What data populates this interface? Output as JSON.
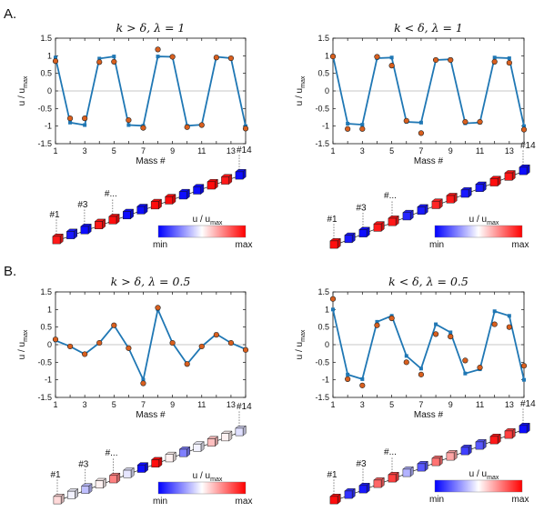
{
  "panels": [
    {
      "label": "A."
    },
    {
      "label": "B."
    }
  ],
  "chart_data": [
    {
      "type": "line",
      "title": "k > δ, λ = 1",
      "xlabel": "Mass #",
      "ylabel": "u / u",
      "ylabel_sub": "max",
      "xlim": [
        1,
        14
      ],
      "ylim": [
        -1.5,
        1.5
      ],
      "x_ticks": [
        1,
        3,
        5,
        7,
        9,
        11,
        13
      ],
      "y_ticks": [
        -1.5,
        -1,
        -0.5,
        0,
        0.5,
        1,
        1.5
      ],
      "x_tick_labels": [
        "1",
        "3",
        "5",
        "7",
        "9",
        "11",
        "13"
      ],
      "y_tick_labels": [
        "-1.5",
        "-1",
        "-0.5",
        "0",
        "0.5",
        "1",
        "1.5"
      ],
      "series": [
        {
          "x": [
            1,
            2,
            3,
            4,
            5,
            6,
            7,
            8,
            9,
            10,
            11,
            12,
            13,
            14
          ],
          "values": [
            0.95,
            -0.9,
            -0.97,
            0.92,
            0.98,
            -0.97,
            -0.99,
            0.98,
            0.97,
            -0.99,
            -0.96,
            0.97,
            0.93,
            -1.0
          ]
        },
        {
          "x": [
            1,
            2,
            3,
            4,
            5,
            6,
            7,
            8,
            9,
            10,
            11,
            12,
            13,
            14
          ],
          "values": [
            0.85,
            -0.78,
            -0.78,
            0.82,
            0.83,
            -0.83,
            -1.05,
            1.18,
            0.97,
            -1.03,
            -0.97,
            0.95,
            0.93,
            -1.07
          ]
        }
      ]
    },
    {
      "type": "line",
      "title": "k < δ, λ = 1",
      "xlabel": "Mass #",
      "ylabel": "u / u",
      "ylabel_sub": "max",
      "xlim": [
        1,
        14
      ],
      "ylim": [
        -1.5,
        1.5
      ],
      "x_ticks": [
        1,
        3,
        5,
        7,
        9,
        11,
        13
      ],
      "y_ticks": [
        -1.5,
        -1,
        -0.5,
        0,
        0.5,
        1,
        1.5
      ],
      "x_tick_labels": [
        "1",
        "3",
        "5",
        "7",
        "9",
        "11",
        "13"
      ],
      "y_tick_labels": [
        "-1.5",
        "-1",
        "-0.5",
        "0",
        "0.5",
        "1",
        "1.5"
      ],
      "series": [
        {
          "x": [
            1,
            2,
            3,
            4,
            5,
            6,
            7,
            8,
            9,
            10,
            11,
            12,
            13,
            14
          ],
          "values": [
            1.0,
            -0.93,
            -0.96,
            0.93,
            0.95,
            -0.88,
            -0.9,
            0.88,
            0.9,
            -0.92,
            -0.9,
            0.95,
            0.93,
            -1.0
          ]
        },
        {
          "x": [
            1,
            2,
            3,
            4,
            5,
            6,
            7,
            8,
            9,
            10,
            11,
            12,
            13,
            14
          ],
          "values": [
            0.98,
            -1.08,
            -1.08,
            0.97,
            0.72,
            -0.85,
            -1.2,
            0.88,
            0.88,
            -0.88,
            -0.88,
            0.83,
            0.8,
            -1.1
          ]
        }
      ]
    },
    {
      "type": "line",
      "title": "k > δ, λ = 0.5",
      "xlabel": "Mass #",
      "ylabel": "u / u",
      "ylabel_sub": "max",
      "xlim": [
        1,
        14
      ],
      "ylim": [
        -1.5,
        1.5
      ],
      "x_ticks": [
        1,
        3,
        5,
        7,
        9,
        11,
        13
      ],
      "y_ticks": [
        -1.5,
        -1,
        -0.5,
        0,
        0.5,
        1,
        1.5
      ],
      "x_tick_labels": [
        "1",
        "3",
        "5",
        "7",
        "9",
        "11",
        "13"
      ],
      "y_tick_labels": [
        "-1.5",
        "-1",
        "-0.5",
        "0",
        "0.5",
        "1",
        "1.5"
      ],
      "series": [
        {
          "x": [
            1,
            2,
            3,
            4,
            5,
            6,
            7,
            8,
            9,
            10,
            11,
            12,
            13,
            14
          ],
          "values": [
            0.12,
            -0.05,
            -0.27,
            0.05,
            0.55,
            -0.1,
            -1.0,
            1.0,
            0.05,
            -0.55,
            -0.05,
            0.3,
            0.05,
            -0.13
          ]
        },
        {
          "x": [
            1,
            2,
            3,
            4,
            5,
            6,
            7,
            8,
            9,
            10,
            11,
            12,
            13,
            14
          ],
          "values": [
            0.15,
            -0.05,
            -0.27,
            0.05,
            0.55,
            -0.1,
            -1.1,
            1.05,
            0.05,
            -0.55,
            -0.05,
            0.28,
            0.05,
            -0.15
          ]
        }
      ]
    },
    {
      "type": "line",
      "title": "k < δ, λ = 0.5",
      "xlabel": "Mass #",
      "ylabel": "u / u",
      "ylabel_sub": "max",
      "xlim": [
        1,
        14
      ],
      "ylim": [
        -1.5,
        1.5
      ],
      "x_ticks": [
        1,
        3,
        5,
        7,
        9,
        11,
        13
      ],
      "y_ticks": [
        -1.5,
        -1,
        -0.5,
        0,
        0.5,
        1,
        1.5
      ],
      "x_tick_labels": [
        "1",
        "3",
        "5",
        "7",
        "9",
        "11",
        "13"
      ],
      "y_tick_labels": [
        "-1.5",
        "-1",
        "-0.5",
        "0",
        "0.5",
        "1",
        "1.5"
      ],
      "series": [
        {
          "x": [
            1,
            2,
            3,
            4,
            5,
            6,
            7,
            8,
            9,
            10,
            11,
            12,
            13,
            14
          ],
          "values": [
            1.0,
            -0.85,
            -0.98,
            0.65,
            0.82,
            -0.32,
            -0.68,
            0.58,
            0.35,
            -0.82,
            -0.7,
            0.95,
            0.82,
            -1.0
          ]
        },
        {
          "x": [
            1,
            2,
            3,
            4,
            5,
            6,
            7,
            8,
            9,
            10,
            11,
            12,
            13,
            14
          ],
          "values": [
            1.3,
            -0.98,
            -1.16,
            0.55,
            0.75,
            -0.5,
            -0.85,
            0.3,
            0.23,
            -0.45,
            -0.65,
            0.58,
            0.5,
            -0.6
          ]
        }
      ]
    }
  ],
  "chains": [
    {
      "values": [
        0.9,
        -0.9,
        -0.95,
        0.9,
        0.95,
        -0.95,
        -0.95,
        0.95,
        0.95,
        -0.95,
        -0.95,
        0.95,
        0.9,
        -0.95
      ]
    },
    {
      "values": [
        0.95,
        -0.9,
        -0.95,
        0.9,
        0.9,
        -0.85,
        -0.9,
        0.85,
        0.9,
        -0.9,
        -0.9,
        0.95,
        0.9,
        -0.95
      ]
    },
    {
      "values": [
        0.15,
        -0.05,
        -0.25,
        0.05,
        0.5,
        -0.1,
        -0.95,
        0.95,
        0.05,
        -0.5,
        -0.05,
        0.25,
        0.05,
        -0.12
      ]
    },
    {
      "values": [
        0.95,
        -0.8,
        -0.9,
        0.6,
        0.75,
        -0.3,
        -0.65,
        0.55,
        0.35,
        -0.75,
        -0.65,
        0.9,
        0.75,
        -0.95
      ]
    }
  ],
  "mass_labels": {
    "first": "#1",
    "third": "#3",
    "dots": "#...",
    "last": "#14"
  },
  "colorbar": {
    "title": "u / u",
    "title_sub": "max",
    "min": "min",
    "max": "max",
    "low_color": "#0000ff",
    "mid_color": "#ffffff",
    "high_color": "#ff0000"
  },
  "colors": {
    "line": "#1f77b4",
    "marker_face": "#d95f1e",
    "marker_edge": "#222222"
  }
}
